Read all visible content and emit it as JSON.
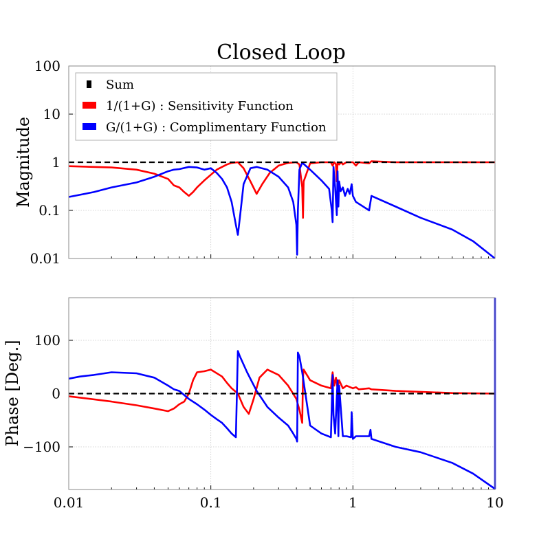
{
  "figure": {
    "title": "Closed Loop",
    "colors": {
      "sum": "#000000",
      "sensitivity": "#ff0000",
      "complementary": "#0000ff"
    }
  },
  "chart_data": [
    {
      "type": "line",
      "panel": "magnitude",
      "title": "Closed Loop",
      "xlabel": "",
      "ylabel": "Magnitude",
      "xscale": "log",
      "yscale": "log",
      "xlim": [
        0.01,
        10
      ],
      "ylim": [
        0.01,
        100
      ],
      "yticks": [
        0.01,
        0.1,
        1,
        10,
        100
      ],
      "ytick_labels": [
        "0.01",
        "0.1",
        "1",
        "10",
        "100"
      ],
      "grid": true,
      "legend": "top-left",
      "series": [
        {
          "name": "Sum",
          "color": "#000000",
          "style": "dashed",
          "x": [
            0.01,
            10
          ],
          "y": [
            1,
            1
          ]
        },
        {
          "name": "1/(1+G) : Sensitivity Function",
          "color": "#ff0000",
          "style": "solid",
          "x": [
            0.01,
            0.02,
            0.03,
            0.04,
            0.05,
            0.055,
            0.06,
            0.065,
            0.07,
            0.075,
            0.08,
            0.09,
            0.1,
            0.11,
            0.12,
            0.13,
            0.14,
            0.155,
            0.17,
            0.19,
            0.21,
            0.23,
            0.26,
            0.3,
            0.35,
            0.4,
            0.42,
            0.44,
            0.445,
            0.45,
            0.5,
            0.6,
            0.7,
            0.72,
            0.74,
            0.76,
            0.77,
            0.78,
            0.8,
            0.83,
            0.85,
            0.9,
            1.0,
            1.05,
            1.1,
            1.3,
            1.35,
            2,
            5,
            10
          ],
          "y": [
            0.83,
            0.78,
            0.7,
            0.58,
            0.45,
            0.33,
            0.3,
            0.24,
            0.2,
            0.24,
            0.3,
            0.42,
            0.55,
            0.7,
            0.8,
            0.9,
            0.97,
            1.0,
            0.75,
            0.4,
            0.22,
            0.35,
            0.6,
            0.85,
            0.97,
            1.0,
            0.9,
            0.3,
            0.07,
            0.4,
            0.95,
            1.0,
            1.0,
            0.85,
            1.0,
            0.9,
            0.4,
            1.0,
            0.9,
            1.0,
            0.9,
            1.0,
            1.0,
            0.85,
            1.0,
            0.95,
            1.05,
            1.0,
            1.0,
            1.0
          ]
        },
        {
          "name": "G/(1+G) : Complimentary Function",
          "color": "#0000ff",
          "style": "solid",
          "x": [
            0.01,
            0.015,
            0.02,
            0.03,
            0.04,
            0.05,
            0.055,
            0.06,
            0.07,
            0.08,
            0.09,
            0.1,
            0.11,
            0.12,
            0.13,
            0.14,
            0.15,
            0.155,
            0.16,
            0.17,
            0.19,
            0.21,
            0.25,
            0.3,
            0.35,
            0.38,
            0.4,
            0.405,
            0.41,
            0.42,
            0.44,
            0.5,
            0.6,
            0.68,
            0.71,
            0.72,
            0.73,
            0.75,
            0.77,
            0.78,
            0.79,
            0.8,
            0.82,
            0.85,
            0.88,
            0.92,
            0.95,
            0.98,
            1.0,
            1.05,
            1.3,
            1.35,
            2,
            3,
            5,
            7,
            10
          ],
          "y": [
            0.19,
            0.24,
            0.3,
            0.38,
            0.5,
            0.65,
            0.7,
            0.72,
            0.8,
            0.78,
            0.7,
            0.75,
            0.6,
            0.45,
            0.3,
            0.15,
            0.05,
            0.031,
            0.07,
            0.35,
            0.75,
            0.8,
            0.7,
            0.5,
            0.3,
            0.15,
            0.05,
            0.012,
            0.1,
            0.7,
            0.98,
            0.7,
            0.42,
            0.28,
            0.1,
            0.057,
            0.8,
            0.3,
            0.08,
            0.65,
            0.12,
            0.4,
            0.25,
            0.3,
            0.2,
            0.28,
            0.22,
            0.35,
            0.2,
            0.15,
            0.1,
            0.2,
            0.12,
            0.07,
            0.04,
            0.023,
            0.01
          ]
        }
      ]
    },
    {
      "type": "line",
      "panel": "phase",
      "title": "",
      "xlabel": "",
      "ylabel": "Phase [Deg.]",
      "xscale": "log",
      "yscale": "linear",
      "xlim": [
        0.01,
        10
      ],
      "ylim": [
        -180,
        180
      ],
      "xticks": [
        0.01,
        0.1,
        1,
        10
      ],
      "xtick_labels": [
        "0.01",
        "0.1",
        "1",
        "10"
      ],
      "yticks": [
        -100,
        0,
        100
      ],
      "ytick_labels": [
        "−100",
        "0",
        "100"
      ],
      "grid": true,
      "series": [
        {
          "name": "Sum",
          "color": "#000000",
          "style": "dashed",
          "x": [
            0.01,
            10
          ],
          "y": [
            0,
            0
          ]
        },
        {
          "name": "1/(1+G) : Sensitivity Function",
          "color": "#ff0000",
          "style": "solid",
          "x": [
            0.01,
            0.02,
            0.03,
            0.04,
            0.05,
            0.055,
            0.06,
            0.065,
            0.07,
            0.075,
            0.08,
            0.09,
            0.1,
            0.12,
            0.13,
            0.14,
            0.155,
            0.17,
            0.185,
            0.2,
            0.22,
            0.25,
            0.3,
            0.35,
            0.4,
            0.42,
            0.44,
            0.445,
            0.45,
            0.5,
            0.6,
            0.7,
            0.72,
            0.74,
            0.76,
            0.78,
            0.8,
            0.85,
            0.9,
            1.0,
            1.05,
            1.1,
            1.3,
            1.35,
            2,
            5,
            10
          ],
          "y": [
            -5,
            -15,
            -22,
            -28,
            -33,
            -28,
            -20,
            -15,
            0,
            25,
            40,
            42,
            45,
            32,
            20,
            10,
            0,
            -25,
            -38,
            -10,
            30,
            45,
            35,
            15,
            -10,
            -30,
            -55,
            30,
            45,
            25,
            15,
            10,
            40,
            15,
            30,
            10,
            25,
            10,
            15,
            10,
            12,
            8,
            10,
            8,
            5,
            1,
            0
          ]
        },
        {
          "name": "G/(1+G) : Complimentary Function",
          "color": "#0000ff",
          "style": "solid",
          "x": [
            0.01,
            0.012,
            0.015,
            0.02,
            0.03,
            0.04,
            0.05,
            0.055,
            0.06,
            0.07,
            0.08,
            0.09,
            0.1,
            0.11,
            0.12,
            0.13,
            0.14,
            0.15,
            0.155,
            0.16,
            0.18,
            0.21,
            0.25,
            0.3,
            0.35,
            0.38,
            0.4,
            0.405,
            0.41,
            0.42,
            0.44,
            0.5,
            0.6,
            0.7,
            0.72,
            0.73,
            0.75,
            0.78,
            0.79,
            0.8,
            0.85,
            0.9,
            0.97,
            0.98,
            1.0,
            1.05,
            1.3,
            1.33,
            1.35,
            2,
            3,
            5,
            7,
            9.9,
            10,
            10
          ],
          "y": [
            28,
            32,
            35,
            40,
            38,
            30,
            15,
            8,
            5,
            -10,
            -20,
            -30,
            -40,
            -48,
            -55,
            -65,
            -75,
            -82,
            80,
            70,
            40,
            5,
            -25,
            -45,
            -60,
            -75,
            -85,
            -90,
            77,
            70,
            40,
            -60,
            -75,
            -82,
            35,
            -40,
            -75,
            25,
            -80,
            15,
            -80,
            -80,
            -82,
            -35,
            -85,
            -80,
            -80,
            -68,
            -85,
            -100,
            -110,
            -130,
            -150,
            -178,
            -178,
            180
          ]
        }
      ]
    }
  ]
}
